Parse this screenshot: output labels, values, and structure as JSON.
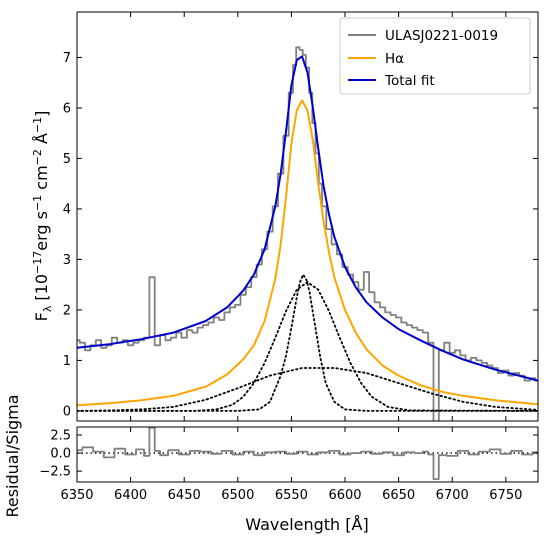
{
  "chart_data": [
    {
      "type": "line",
      "panel": "spectrum",
      "xlabel": "Wavelength [Å]",
      "ylabel_parts": {
        "main": "F",
        "sub": "λ",
        "units": " [10",
        "e1": "−17",
        "erg": "erg s",
        "e2": "−1",
        "cm": " cm",
        "e3": "−2",
        "ang": " Å",
        "e4": "−1",
        "close": "]"
      },
      "xlim": [
        6350,
        6780
      ],
      "ylim": [
        -0.2,
        7.9
      ],
      "xticks": [
        6350,
        6400,
        6450,
        6500,
        6550,
        6600,
        6650,
        6700,
        6750
      ],
      "yticks": [
        0,
        1,
        2,
        3,
        4,
        5,
        6,
        7
      ],
      "legend_position": "top-right",
      "legend": [
        {
          "label": "ULASJ0221-0019",
          "color": "#808080"
        },
        {
          "label": "Hα",
          "color": "#FFA500"
        },
        {
          "label": "Total fit",
          "color": "#0000CD"
        }
      ],
      "series": [
        {
          "name": "ULASJ0221-0019",
          "style": "step",
          "color": "#808080",
          "x": [
            6350,
            6355,
            6360,
            6365,
            6370,
            6375,
            6380,
            6385,
            6390,
            6395,
            6400,
            6405,
            6410,
            6415,
            6420,
            6425,
            6430,
            6435,
            6440,
            6445,
            6450,
            6455,
            6460,
            6465,
            6470,
            6475,
            6480,
            6485,
            6490,
            6495,
            6500,
            6505,
            6510,
            6515,
            6520,
            6525,
            6530,
            6535,
            6540,
            6545,
            6550,
            6553,
            6556,
            6559,
            6562,
            6565,
            6568,
            6571,
            6574,
            6577,
            6580,
            6585,
            6590,
            6595,
            6600,
            6605,
            6610,
            6615,
            6620,
            6625,
            6630,
            6635,
            6640,
            6645,
            6650,
            6655,
            6660,
            6665,
            6670,
            6675,
            6680,
            6685,
            6690,
            6695,
            6700,
            6705,
            6710,
            6715,
            6720,
            6725,
            6730,
            6735,
            6740,
            6745,
            6750,
            6755,
            6760,
            6765,
            6770,
            6775,
            6780
          ],
          "values": [
            1.4,
            1.35,
            1.2,
            1.3,
            1.4,
            1.25,
            1.3,
            1.45,
            1.35,
            1.4,
            1.3,
            1.35,
            1.4,
            1.45,
            2.65,
            1.3,
            1.5,
            1.4,
            1.45,
            1.55,
            1.45,
            1.6,
            1.55,
            1.65,
            1.7,
            1.75,
            1.85,
            1.8,
            1.95,
            2.05,
            2.1,
            2.3,
            2.45,
            2.65,
            2.9,
            3.2,
            3.55,
            4.05,
            4.7,
            5.45,
            6.3,
            6.85,
            7.2,
            7.15,
            7.05,
            6.8,
            6.3,
            5.7,
            5.1,
            4.5,
            4.05,
            3.6,
            3.3,
            3.1,
            2.85,
            2.7,
            2.55,
            2.4,
            2.75,
            2.35,
            2.15,
            2.05,
            1.95,
            1.9,
            1.85,
            1.75,
            1.7,
            1.65,
            1.6,
            1.55,
            1.35,
            -0.4,
            1.2,
            1.35,
            1.15,
            1.2,
            1.1,
            1.0,
            1.05,
            1.0,
            0.95,
            0.9,
            0.85,
            0.75,
            0.8,
            0.7,
            0.75,
            0.7,
            0.6,
            0.65,
            0.6
          ]
        },
        {
          "name": "Hα",
          "style": "line",
          "color": "#FFA500",
          "x": [
            6350,
            6380,
            6410,
            6440,
            6470,
            6490,
            6505,
            6515,
            6525,
            6535,
            6540,
            6545,
            6550,
            6555,
            6560,
            6565,
            6570,
            6575,
            6580,
            6585,
            6590,
            6600,
            6610,
            6620,
            6635,
            6650,
            6670,
            6690,
            6710,
            6740,
            6780
          ],
          "values": [
            0.11,
            0.15,
            0.21,
            0.3,
            0.48,
            0.72,
            1.02,
            1.3,
            1.78,
            2.62,
            3.3,
            4.25,
            5.3,
            5.95,
            6.15,
            5.95,
            5.35,
            4.5,
            3.75,
            3.15,
            2.65,
            2.0,
            1.55,
            1.22,
            0.9,
            0.7,
            0.51,
            0.38,
            0.3,
            0.21,
            0.13
          ]
        },
        {
          "name": "Total fit",
          "style": "line",
          "color": "#0000CD",
          "x": [
            6350,
            6380,
            6410,
            6440,
            6470,
            6490,
            6505,
            6515,
            6525,
            6535,
            6540,
            6545,
            6550,
            6555,
            6560,
            6565,
            6570,
            6575,
            6580,
            6585,
            6590,
            6600,
            6610,
            6620,
            6635,
            6650,
            6670,
            6690,
            6710,
            6740,
            6780
          ],
          "values": [
            1.25,
            1.32,
            1.42,
            1.55,
            1.78,
            2.05,
            2.38,
            2.7,
            3.2,
            4.05,
            4.7,
            5.55,
            6.45,
            6.95,
            7.02,
            6.7,
            6.0,
            5.2,
            4.45,
            3.9,
            3.45,
            2.85,
            2.45,
            2.15,
            1.85,
            1.62,
            1.4,
            1.2,
            1.02,
            0.82,
            0.6
          ]
        },
        {
          "name": "",
          "style": "dotted",
          "color": "#000000",
          "x": [
            6350,
            6500,
            6520,
            6530,
            6540,
            6545,
            6550,
            6555,
            6558,
            6561,
            6564,
            6567,
            6572,
            6577,
            6582,
            6590,
            6600,
            6620,
            6780
          ],
          "values": [
            0.0,
            0.0,
            0.03,
            0.18,
            0.7,
            1.1,
            1.65,
            2.25,
            2.55,
            2.7,
            2.6,
            2.35,
            1.7,
            1.05,
            0.55,
            0.18,
            0.03,
            0.0,
            0.0
          ]
        },
        {
          "name": "",
          "style": "dotted",
          "color": "#000000",
          "x": [
            6350,
            6460,
            6480,
            6495,
            6505,
            6515,
            6525,
            6535,
            6545,
            6555,
            6565,
            6575,
            6585,
            6595,
            6605,
            6615,
            6625,
            6640,
            6660,
            6780
          ],
          "values": [
            0.0,
            0.0,
            0.03,
            0.12,
            0.28,
            0.55,
            0.95,
            1.45,
            1.98,
            2.4,
            2.55,
            2.4,
            1.98,
            1.45,
            0.95,
            0.55,
            0.28,
            0.08,
            0.01,
            0.0
          ]
        },
        {
          "name": "",
          "style": "dotted",
          "color": "#000000",
          "x": [
            6350,
            6380,
            6410,
            6440,
            6470,
            6500,
            6530,
            6560,
            6590,
            6620,
            6650,
            6680,
            6710,
            6740,
            6780
          ],
          "values": [
            0.0,
            0.01,
            0.03,
            0.08,
            0.22,
            0.45,
            0.7,
            0.85,
            0.85,
            0.75,
            0.55,
            0.35,
            0.18,
            0.08,
            0.02
          ]
        }
      ]
    },
    {
      "type": "line",
      "panel": "residual",
      "ylabel": "Residual/Sigma",
      "xlim": [
        6350,
        6780
      ],
      "ylim": [
        -4.0,
        3.6
      ],
      "xticks": [
        6350,
        6400,
        6450,
        6500,
        6550,
        6600,
        6650,
        6700,
        6750
      ],
      "xtick_labels": [
        "6350",
        "6400",
        "6450",
        "6500",
        "6550",
        "6600",
        "6650",
        "6700",
        "6750"
      ],
      "yticks": [
        -2.5,
        0.0,
        2.5
      ],
      "ytick_labels": [
        "−2.5",
        "0.0",
        "2.5"
      ],
      "zero_line": "dotted",
      "series": [
        {
          "name": "",
          "style": "step",
          "color": "#808080",
          "x": [
            6350,
            6360,
            6370,
            6380,
            6390,
            6400,
            6410,
            6415,
            6420,
            6425,
            6430,
            6440,
            6450,
            6460,
            6470,
            6480,
            6490,
            6500,
            6510,
            6520,
            6530,
            6540,
            6550,
            6560,
            6570,
            6580,
            6590,
            6600,
            6610,
            6620,
            6630,
            6640,
            6650,
            6660,
            6670,
            6675,
            6680,
            6685,
            6690,
            6700,
            6710,
            6720,
            6730,
            6740,
            6750,
            6760,
            6770,
            6780
          ],
          "values": [
            0.4,
            0.8,
            0.2,
            -0.6,
            0.6,
            -0.2,
            0.5,
            -0.4,
            3.5,
            0.3,
            -0.3,
            0.4,
            -0.2,
            0.3,
            0.2,
            -0.1,
            0.3,
            -0.2,
            0.2,
            -0.3,
            0.1,
            0.2,
            -0.1,
            0.2,
            -0.2,
            0.1,
            0.3,
            -0.2,
            0.0,
            0.2,
            -0.1,
            0.1,
            -0.3,
            0.1,
            0.0,
            0.2,
            -0.2,
            -3.6,
            -0.3,
            -0.4,
            0.3,
            -0.2,
            0.2,
            0.5,
            -0.1,
            0.3,
            -0.2,
            0.1
          ]
        }
      ]
    }
  ]
}
